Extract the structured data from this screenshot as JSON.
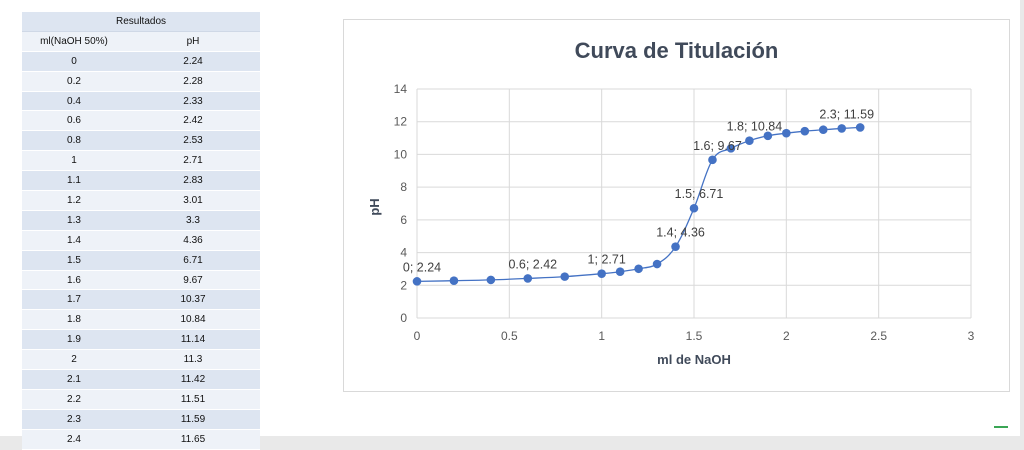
{
  "table": {
    "title": "Resultados",
    "headers": [
      "ml(NaOH 50%)",
      "pH"
    ],
    "rows": [
      [
        "0",
        "2.24"
      ],
      [
        "0.2",
        "2.28"
      ],
      [
        "0.4",
        "2.33"
      ],
      [
        "0.6",
        "2.42"
      ],
      [
        "0.8",
        "2.53"
      ],
      [
        "1",
        "2.71"
      ],
      [
        "1.1",
        "2.83"
      ],
      [
        "1.2",
        "3.01"
      ],
      [
        "1.3",
        "3.3"
      ],
      [
        "1.4",
        "4.36"
      ],
      [
        "1.5",
        "6.71"
      ],
      [
        "1.6",
        "9.67"
      ],
      [
        "1.7",
        "10.37"
      ],
      [
        "1.8",
        "10.84"
      ],
      [
        "1.9",
        "11.14"
      ],
      [
        "2",
        "11.3"
      ],
      [
        "2.1",
        "11.42"
      ],
      [
        "2.2",
        "11.51"
      ],
      [
        "2.3",
        "11.59"
      ],
      [
        "2.4",
        "11.65"
      ]
    ]
  },
  "chart_data": {
    "type": "scatter",
    "title": "Curva de Titulación",
    "xlabel": "ml de NaOH",
    "ylabel": "pH",
    "xlim": [
      0,
      3
    ],
    "ylim": [
      0,
      14
    ],
    "xticks": [
      "0",
      "0.5",
      "1",
      "1.5",
      "2",
      "2.5",
      "3"
    ],
    "yticks": [
      "0",
      "2",
      "4",
      "6",
      "8",
      "10",
      "12",
      "14"
    ],
    "grid": true,
    "line_color": "#4472c4",
    "series": [
      {
        "x": [
          0,
          0.2,
          0.4,
          0.6,
          0.8,
          1,
          1.1,
          1.2,
          1.3,
          1.4,
          1.5,
          1.6,
          1.7,
          1.8,
          1.9,
          2,
          2.1,
          2.2,
          2.3,
          2.4
        ],
        "y": [
          2.24,
          2.28,
          2.33,
          2.42,
          2.53,
          2.71,
          2.83,
          3.01,
          3.3,
          4.36,
          6.71,
          9.67,
          10.37,
          10.84,
          11.14,
          11.3,
          11.42,
          11.51,
          11.59,
          11.65
        ]
      }
    ],
    "data_labels": [
      {
        "x": 0,
        "y": 2.24,
        "text": "0; 2.24"
      },
      {
        "x": 0.6,
        "y": 2.42,
        "text": "0.6; 2.42"
      },
      {
        "x": 1,
        "y": 2.71,
        "text": "1; 2.71"
      },
      {
        "x": 1.4,
        "y": 4.36,
        "text": "1.4; 4.36"
      },
      {
        "x": 1.5,
        "y": 6.71,
        "text": "1.5; 6.71"
      },
      {
        "x": 1.6,
        "y": 9.67,
        "text": "1.6; 9.67"
      },
      {
        "x": 1.8,
        "y": 10.84,
        "text": "1.8; 10.84"
      },
      {
        "x": 2.3,
        "y": 11.59,
        "text": "2.3; 11.59"
      }
    ]
  }
}
